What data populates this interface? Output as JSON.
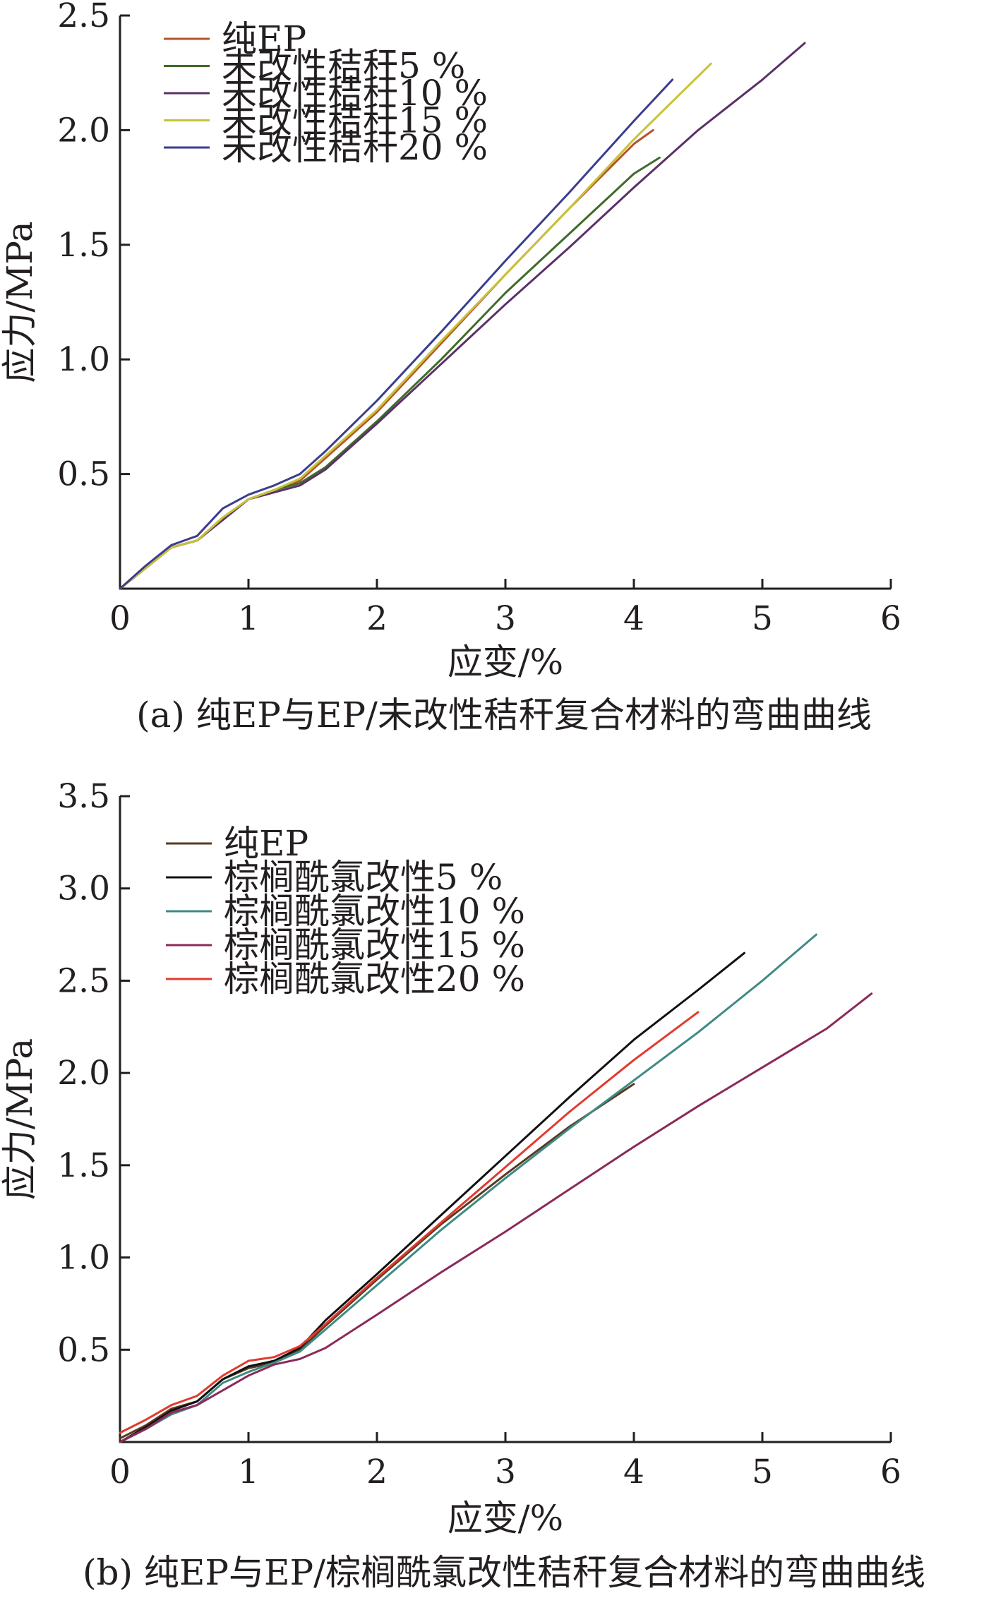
{
  "chart_data": [
    {
      "type": "line",
      "caption": "(a) 纯EP与EP/未改性秸秆复合材料的弯曲曲线",
      "xlabel": "应变/%",
      "ylabel": "应力/MPa",
      "xlim": [
        0,
        6
      ],
      "ylim": [
        0,
        2.5
      ],
      "xticks": [
        "0",
        "1",
        "2",
        "3",
        "4",
        "5",
        "6"
      ],
      "yticks": [
        "0.5",
        "1.0",
        "1.5",
        "2.0",
        "2.5"
      ],
      "legend_position": "top-left",
      "series": [
        {
          "name": "纯EP",
          "color": "#b5532b",
          "x": [
            0,
            0.2,
            0.4,
            0.6,
            0.8,
            1.0,
            1.2,
            1.4,
            1.6,
            2.0,
            2.5,
            3.0,
            3.5,
            4.0,
            4.15
          ],
          "y": [
            0,
            0.09,
            0.18,
            0.21,
            0.31,
            0.39,
            0.43,
            0.47,
            0.57,
            0.77,
            1.07,
            1.37,
            1.66,
            1.94,
            2.0
          ]
        },
        {
          "name": "未改性秸秆5 %",
          "color": "#3f6b2a",
          "x": [
            0,
            0.2,
            0.4,
            0.6,
            0.8,
            1.0,
            1.2,
            1.4,
            1.6,
            2.0,
            2.5,
            3.0,
            3.5,
            4.0,
            4.2
          ],
          "y": [
            0,
            0.09,
            0.18,
            0.21,
            0.3,
            0.39,
            0.43,
            0.46,
            0.53,
            0.73,
            1.0,
            1.29,
            1.55,
            1.81,
            1.88
          ]
        },
        {
          "name": "未改性秸秆10 %",
          "color": "#5b3068",
          "x": [
            0,
            0.2,
            0.4,
            0.6,
            0.8,
            1.0,
            1.2,
            1.4,
            1.6,
            2.0,
            2.5,
            3.0,
            3.5,
            4.0,
            4.5,
            5.0,
            5.33
          ],
          "y": [
            0,
            0.09,
            0.18,
            0.21,
            0.3,
            0.39,
            0.42,
            0.45,
            0.52,
            0.72,
            0.98,
            1.24,
            1.49,
            1.75,
            2.0,
            2.22,
            2.38
          ]
        },
        {
          "name": "未改性秸秆15 %",
          "color": "#c8c23a",
          "x": [
            0,
            0.2,
            0.4,
            0.6,
            0.8,
            1.0,
            1.2,
            1.4,
            1.6,
            2.0,
            2.5,
            3.0,
            3.5,
            4.0,
            4.6
          ],
          "y": [
            0,
            0.09,
            0.18,
            0.21,
            0.31,
            0.39,
            0.43,
            0.48,
            0.58,
            0.78,
            1.08,
            1.37,
            1.66,
            1.96,
            2.29
          ]
        },
        {
          "name": "未改性秸秆20 %",
          "color": "#3b3d8f",
          "x": [
            0,
            0.2,
            0.4,
            0.6,
            0.8,
            1.0,
            1.2,
            1.4,
            1.6,
            2.0,
            2.5,
            3.0,
            3.5,
            4.0,
            4.3
          ],
          "y": [
            0,
            0.1,
            0.19,
            0.23,
            0.35,
            0.41,
            0.45,
            0.5,
            0.6,
            0.82,
            1.12,
            1.43,
            1.73,
            2.04,
            2.22
          ]
        }
      ]
    },
    {
      "type": "line",
      "caption": "(b) 纯EP与EP/棕榈酰氯改性秸秆复合材料的弯曲曲线",
      "xlabel": "应变/%",
      "ylabel": "应力/MPa",
      "xlim": [
        0,
        6
      ],
      "ylim": [
        0,
        3.5
      ],
      "xticks": [
        "0",
        "1",
        "2",
        "3",
        "4",
        "5",
        "6"
      ],
      "yticks": [
        "0.5",
        "1.0",
        "1.5",
        "2.0",
        "2.5",
        "3.0",
        "3.5"
      ],
      "legend_position": "top-left",
      "series": [
        {
          "name": "纯EP",
          "color": "#5a3a22",
          "x": [
            0,
            0.2,
            0.4,
            0.6,
            0.8,
            1.0,
            1.2,
            1.4,
            1.6,
            2.0,
            2.5,
            3.0,
            3.5,
            4.0
          ],
          "y": [
            0.02,
            0.09,
            0.18,
            0.22,
            0.34,
            0.4,
            0.43,
            0.5,
            0.63,
            0.88,
            1.18,
            1.45,
            1.71,
            1.94
          ]
        },
        {
          "name": "棕榈酰氯改性5 %",
          "color": "#111111",
          "x": [
            0,
            0.2,
            0.4,
            0.6,
            0.8,
            1.0,
            1.2,
            1.4,
            1.6,
            2.0,
            2.5,
            3.0,
            3.5,
            4.0,
            4.5,
            4.86
          ],
          "y": [
            0.0,
            0.08,
            0.17,
            0.22,
            0.34,
            0.41,
            0.44,
            0.51,
            0.66,
            0.91,
            1.23,
            1.55,
            1.87,
            2.18,
            2.45,
            2.65
          ]
        },
        {
          "name": "棕榈酰氯改性10 %",
          "color": "#3f8a84",
          "x": [
            0,
            0.2,
            0.4,
            0.6,
            0.8,
            1.0,
            1.2,
            1.4,
            1.6,
            2.0,
            2.5,
            3.0,
            3.5,
            4.0,
            4.5,
            5.0,
            5.42
          ],
          "y": [
            0.0,
            0.07,
            0.15,
            0.2,
            0.32,
            0.38,
            0.43,
            0.49,
            0.61,
            0.85,
            1.15,
            1.43,
            1.7,
            1.96,
            2.22,
            2.5,
            2.75
          ]
        },
        {
          "name": "棕榈酰氯改性15 %",
          "color": "#8b2a5a",
          "x": [
            0,
            0.2,
            0.4,
            0.6,
            0.8,
            1.0,
            1.2,
            1.4,
            1.6,
            2.0,
            2.5,
            3.0,
            3.5,
            4.0,
            4.5,
            5.0,
            5.5,
            5.85
          ],
          "y": [
            0.0,
            0.07,
            0.16,
            0.2,
            0.28,
            0.36,
            0.42,
            0.45,
            0.51,
            0.69,
            0.92,
            1.14,
            1.37,
            1.6,
            1.82,
            2.03,
            2.24,
            2.43
          ]
        },
        {
          "name": "棕榈酰氯改性20 %",
          "color": "#e23a2e",
          "x": [
            0,
            0.2,
            0.4,
            0.6,
            0.8,
            1.0,
            1.2,
            1.4,
            1.6,
            2.0,
            2.5,
            3.0,
            3.5,
            4.0,
            4.5
          ],
          "y": [
            0.05,
            0.12,
            0.2,
            0.25,
            0.36,
            0.44,
            0.46,
            0.52,
            0.64,
            0.89,
            1.19,
            1.49,
            1.79,
            2.07,
            2.33
          ]
        }
      ]
    }
  ]
}
